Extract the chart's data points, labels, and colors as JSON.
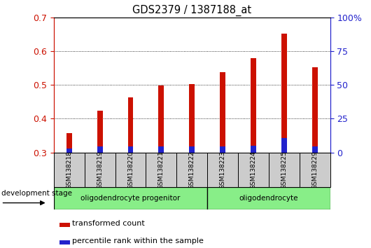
{
  "title": "GDS2379 / 1387188_at",
  "samples": [
    "GSM138218",
    "GSM138219",
    "GSM138220",
    "GSM138221",
    "GSM138222",
    "GSM138223",
    "GSM138224",
    "GSM138225",
    "GSM138229"
  ],
  "transformed_count": [
    0.357,
    0.424,
    0.463,
    0.499,
    0.503,
    0.538,
    0.58,
    0.652,
    0.552
  ],
  "percentile_rank_val": [
    0.012,
    0.018,
    0.018,
    0.018,
    0.018,
    0.018,
    0.02,
    0.042,
    0.018
  ],
  "bar_bottom": 0.3,
  "ylim_left": [
    0.3,
    0.7
  ],
  "ylim_right": [
    0,
    100
  ],
  "yticks_left": [
    0.3,
    0.4,
    0.5,
    0.6,
    0.7
  ],
  "yticks_right": [
    0,
    25,
    50,
    75,
    100
  ],
  "ytick_labels_right": [
    "0",
    "25",
    "50",
    "75",
    "100%"
  ],
  "red_color": "#cc1100",
  "blue_color": "#2222cc",
  "group1_label": "oligodendrocyte progenitor",
  "group2_label": "oligodendrocyte",
  "group1_count": 5,
  "group2_count": 4,
  "group_bg_color": "#88ee88",
  "sample_bg_color": "#cccccc",
  "dev_stage_label": "development stage",
  "legend_red": "transformed count",
  "legend_blue": "percentile rank within the sample",
  "bar_width": 0.18,
  "title_color": "#000000",
  "left_tick_color": "#cc1100",
  "right_tick_color": "#2222cc"
}
